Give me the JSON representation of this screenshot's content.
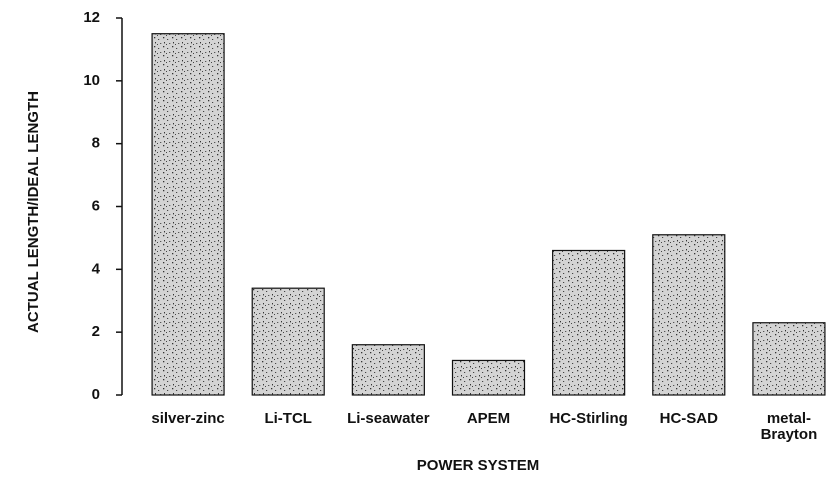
{
  "chart_data": {
    "type": "bar",
    "x_label": "POWER SYSTEM",
    "y_label": "ACTUAL LENGTH/IDEAL LENGTH",
    "categories": [
      "silver-zinc",
      "Li-TCL",
      "Li-seawater",
      "APEM",
      "HC-Stirling",
      "HC-SAD",
      "metal-Brayton"
    ],
    "values": [
      11.5,
      3.4,
      1.6,
      1.1,
      4.6,
      5.1,
      2.3
    ],
    "color": "#d4d4d4",
    "ylim": [
      0,
      12
    ],
    "yticks": [
      0,
      2,
      4,
      6,
      8,
      10,
      12
    ],
    "grid": false
  }
}
